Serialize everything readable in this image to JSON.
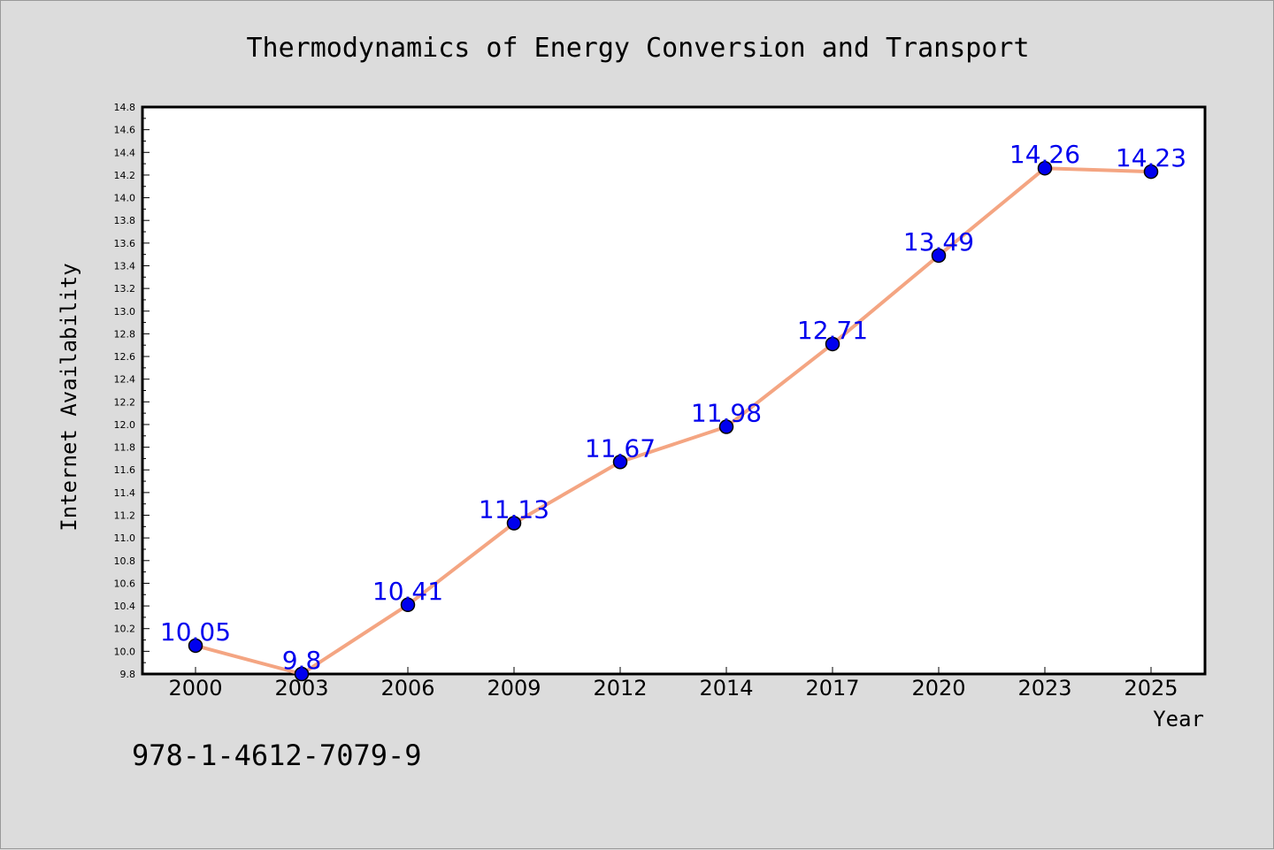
{
  "chart_data": {
    "type": "line",
    "title": "Thermodynamics of Energy Conversion and Transport",
    "xlabel": "Year",
    "ylabel": "Internet Availability",
    "categories": [
      "2000",
      "2003",
      "2006",
      "2009",
      "2012",
      "2014",
      "2017",
      "2020",
      "2023",
      "2025"
    ],
    "series": [
      {
        "values": [
          10.05,
          9.8,
          10.41,
          11.13,
          11.67,
          11.98,
          12.71,
          13.49,
          14.26,
          14.23
        ],
        "data_labels": [
          "10.05",
          "9.8",
          "10.41",
          "11.13",
          "11.67",
          "11.98",
          "12.71",
          "13.49",
          "14.26",
          "14.23"
        ]
      }
    ],
    "ylim": [
      9.8,
      14.8
    ],
    "yticks": [
      "9.8",
      "10.0",
      "10.2",
      "10.4",
      "10.6",
      "10.8",
      "11.0",
      "11.2",
      "11.4",
      "11.6",
      "11.8",
      "12.0",
      "12.2",
      "12.4",
      "12.6",
      "12.8",
      "13.0",
      "13.2",
      "13.4",
      "13.6",
      "13.8",
      "14.0",
      "14.2",
      "14.4",
      "14.6",
      "14.8"
    ],
    "grid": false,
    "legend": "none",
    "colors": {
      "line": "#f4a582",
      "marker": "#0000ee",
      "data_label": "#0000ee",
      "background": "#dcdcdc",
      "plot_area": "#ffffff"
    }
  },
  "isbn": "978-1-4612-7079-9"
}
